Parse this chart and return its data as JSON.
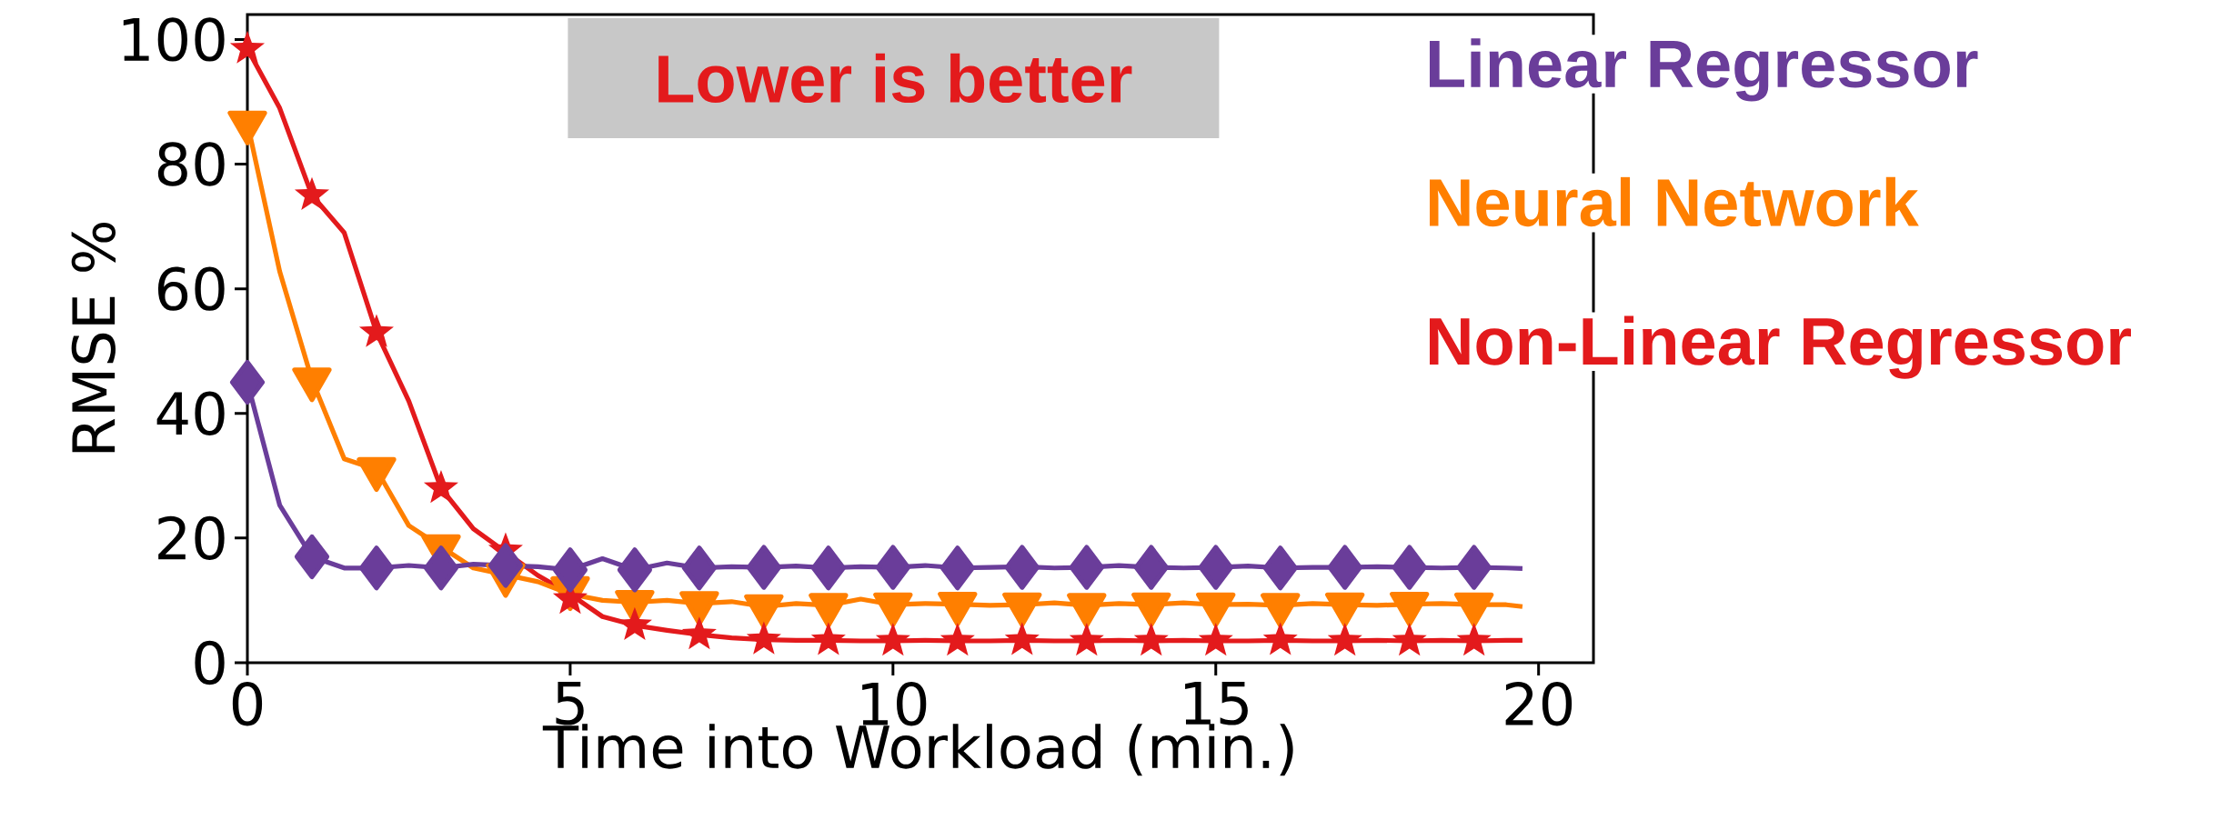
{
  "chart_data": {
    "type": "line",
    "xlabel": "Time into Workload (min.)",
    "ylabel": "RMSE %",
    "annotations": [
      "Lower is better"
    ],
    "x": [
      0,
      0.5,
      1,
      1.5,
      2,
      2.5,
      3,
      3.5,
      4,
      4.5,
      5,
      5.5,
      6,
      6.5,
      7,
      7.5,
      8,
      8.5,
      9,
      9.5,
      10,
      10.5,
      11,
      11.5,
      12,
      12.5,
      13,
      13.5,
      14,
      14.5,
      15,
      15.5,
      16,
      16.5,
      17,
      17.5,
      18,
      18.5,
      19,
      19.5,
      19.75
    ],
    "series": [
      {
        "name": "Linear Regressor",
        "color": "#6a3d9a",
        "marker": "none",
        "values": [
          45,
          25.3,
          17,
          15.2,
          15.2,
          15.6,
          15.2,
          15.8,
          15.6,
          15.4,
          14.9,
          16.7,
          14.9,
          16,
          15.2,
          15.4,
          15.3,
          15.5,
          15.2,
          15.4,
          15.3,
          15.6,
          15.2,
          15.3,
          15.4,
          15.2,
          15.3,
          15.6,
          15.3,
          15.2,
          15.3,
          15.5,
          15.2,
          15.3,
          15.3,
          15.4,
          15.3,
          15.2,
          15.3,
          15.2,
          15.1
        ]
      },
      {
        "name": "Neural Network",
        "color": "#ff7f00",
        "marker": "none",
        "x": [
          0,
          0.5,
          1,
          1.5,
          2,
          2.5,
          3,
          3.5,
          4.5,
          5,
          5.5,
          6,
          6.5,
          7,
          7.5,
          8,
          8.5,
          9,
          9.5,
          10,
          10.5,
          11,
          11.5,
          12,
          12.5,
          13,
          13.5,
          14,
          14.5,
          15,
          15.5,
          16,
          16.5,
          17,
          17.5,
          18,
          18.5,
          19,
          19.5,
          19.75
        ],
        "values": [
          86.6,
          62.8,
          45.4,
          32.7,
          31,
          22,
          18.6,
          15.2,
          13,
          11,
          10,
          9.7,
          10,
          9.5,
          9.8,
          9,
          9.5,
          9.2,
          10.2,
          9.3,
          9.5,
          9.4,
          9.2,
          9.3,
          9.6,
          9.2,
          9.5,
          9.3,
          9.6,
          9.3,
          9.4,
          9.2,
          9.5,
          9.3,
          9.2,
          9.4,
          9.5,
          9.3,
          9.3,
          9
        ]
      },
      {
        "name": "Non-Linear Regressor",
        "color": "#e31a1c",
        "marker": "none",
        "x": [
          0,
          0.5,
          1,
          1.5,
          2,
          2.5,
          3,
          3.5,
          4.5,
          5,
          5.5,
          6,
          6.5,
          7,
          7.5,
          8,
          8.5,
          9,
          9.5,
          10,
          10.5,
          11,
          11.5,
          12,
          12.5,
          13,
          13.5,
          14,
          14.5,
          15,
          15.5,
          16,
          16.5,
          17,
          17.5,
          18,
          18.5,
          19,
          19.5,
          19.75
        ],
        "values": [
          98.5,
          89,
          75,
          69,
          53,
          42,
          28,
          21.5,
          14,
          11,
          7.4,
          6,
          5.2,
          4.5,
          4,
          3.7,
          3.6,
          3.6,
          3.5,
          3.5,
          3.6,
          3.5,
          3.5,
          3.6,
          3.5,
          3.5,
          3.6,
          3.5,
          3.6,
          3.5,
          3.5,
          3.6,
          3.5,
          3.5,
          3.6,
          3.5,
          3.6,
          3.5,
          3.6,
          3.6
        ]
      },
      {
        "type": "scatter",
        "color": "#ff7f00",
        "marker": "triangle",
        "x": [
          0,
          1,
          2,
          3,
          4,
          5,
          6,
          7,
          8,
          9,
          10,
          11,
          12,
          13,
          14,
          15,
          16,
          17,
          18,
          19
        ],
        "values": [
          86.6,
          45.4,
          31,
          18.6,
          14,
          11.9,
          9.7,
          9.5,
          9,
          9.2,
          9.3,
          9.4,
          9.3,
          9.2,
          9.3,
          9.3,
          9.2,
          9.3,
          9.4,
          9.3
        ]
      },
      {
        "type": "scatter",
        "color": "#e31a1c",
        "marker": "star",
        "x": [
          0,
          1,
          2,
          3,
          4,
          5,
          6,
          7,
          8,
          9,
          10,
          11,
          12,
          13,
          14,
          15,
          16,
          17,
          18,
          19
        ],
        "values": [
          98.5,
          75,
          53,
          28,
          18,
          10.2,
          6,
          4.5,
          3.7,
          3.6,
          3.5,
          3.5,
          3.6,
          3.5,
          3.5,
          3.5,
          3.6,
          3.5,
          3.5,
          3.5
        ]
      },
      {
        "type": "scatter",
        "color": "#6a3d9a",
        "marker": "diamond",
        "x": [
          0,
          1,
          2,
          3,
          4,
          5,
          6,
          7,
          8,
          9,
          10,
          11,
          12,
          13,
          14,
          15,
          16,
          17,
          18,
          19
        ],
        "values": [
          45,
          17,
          15.2,
          15.2,
          15.6,
          14.9,
          14.9,
          15.2,
          15.3,
          15.2,
          15.3,
          15.2,
          15.3,
          15.3,
          15.3,
          15.3,
          15.2,
          15.3,
          15.3,
          15.3
        ]
      }
    ],
    "xlim": [
      0,
      20.85
    ],
    "ylim": [
      0,
      104
    ],
    "xticks": [
      0,
      5,
      10,
      15,
      20
    ],
    "yticks": [
      0,
      20,
      40,
      60,
      80,
      100
    ],
    "legend": "right",
    "grid": false,
    "line_style": "solid"
  }
}
